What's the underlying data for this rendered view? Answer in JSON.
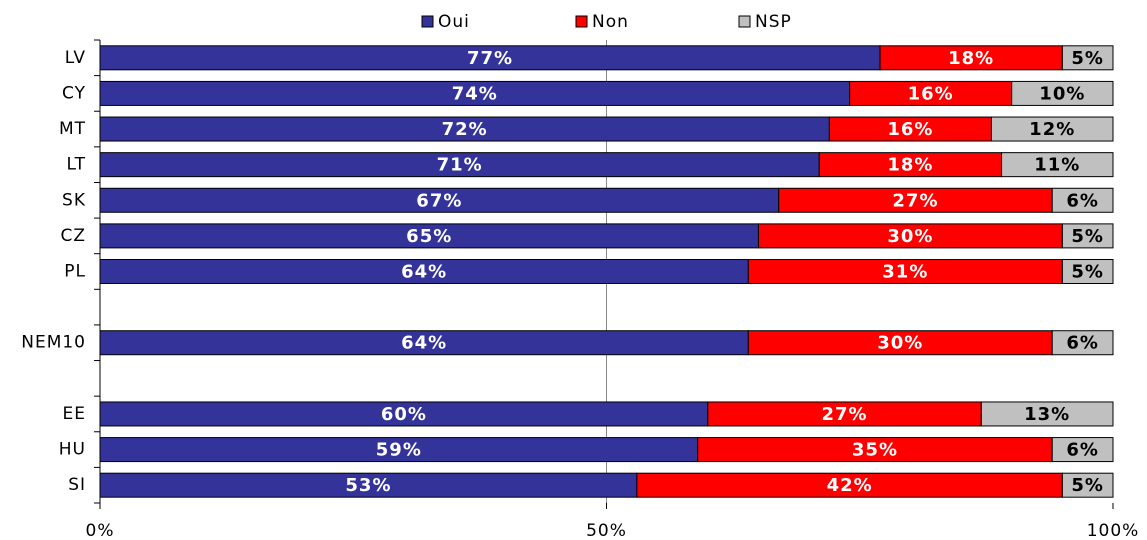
{
  "chart_data": {
    "type": "stacked_barh",
    "categories": [
      "LV",
      "CY",
      "MT",
      "LT",
      "SK",
      "CZ",
      "PL",
      null,
      "NEM10",
      null,
      "EE",
      "HU",
      "SI"
    ],
    "series": [
      {
        "name": "Oui",
        "color": "#333399",
        "label_color": "#ffffff",
        "values": [
          77,
          74,
          72,
          71,
          67,
          65,
          64,
          null,
          64,
          null,
          60,
          59,
          53
        ],
        "value_labels": [
          "77%",
          "74%",
          "72%",
          "71%",
          "67%",
          "65%",
          "64%",
          null,
          "64%",
          null,
          "60%",
          "59%",
          "53%"
        ]
      },
      {
        "name": "Non",
        "color": "#ff0000",
        "label_color": "#ffffff",
        "values": [
          18,
          16,
          16,
          18,
          27,
          30,
          31,
          null,
          30,
          null,
          27,
          35,
          42
        ],
        "value_labels": [
          "18%",
          "16%",
          "16%",
          "18%",
          "27%",
          "30%",
          "31%",
          null,
          "30%",
          null,
          "27%",
          "35%",
          "42%"
        ]
      },
      {
        "name": "NSP",
        "color": "#c0c0c0",
        "label_color": "#000000",
        "values": [
          5,
          10,
          12,
          11,
          6,
          5,
          5,
          null,
          6,
          null,
          13,
          6,
          5
        ],
        "value_labels": [
          "5%",
          "10%",
          "12%",
          "11%",
          "6%",
          "5%",
          "5%",
          null,
          "6%",
          null,
          "13%",
          "6%",
          "5%"
        ]
      }
    ],
    "xlim": [
      0,
      100
    ],
    "xticks": [
      {
        "value": 0,
        "label": "0%"
      },
      {
        "value": 50,
        "label": "50%"
      },
      {
        "value": 100,
        "label": "100%"
      }
    ],
    "grid": true,
    "legend": "top"
  }
}
